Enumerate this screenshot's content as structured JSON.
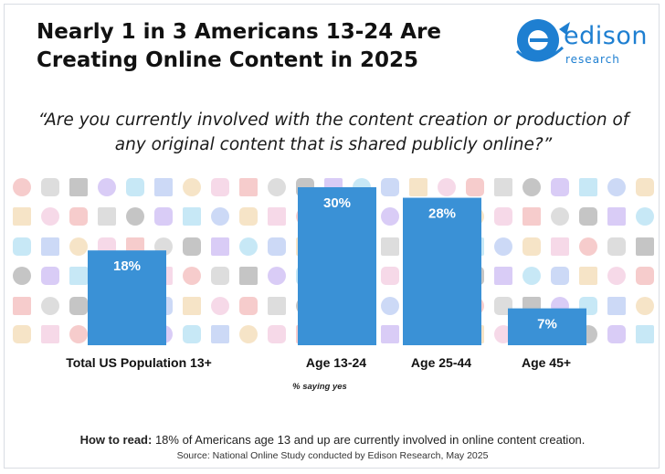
{
  "title": "Nearly 1 in 3 Americans 13-24 Are Creating Online Content in 2025",
  "logo": {
    "brand": "edison",
    "tagline": "research"
  },
  "question": "“Are you currently involved with the content creation or production of any original content that is shared publicly online?”",
  "chart_data": {
    "type": "bar",
    "categories": [
      "Total US Population 13+",
      "Age 13-24",
      "Age 25-44",
      "Age 45+"
    ],
    "values": [
      18,
      30,
      28,
      7
    ],
    "value_labels": [
      "18%",
      "30%",
      "28%",
      "7%"
    ],
    "ylim": [
      0,
      30
    ],
    "note": "% saying yes",
    "bar_color": "#3a91d6",
    "grid": false
  },
  "how_to_read": {
    "label": "How to read:",
    "text": " 18% of Americans age 13 and up are currently involved in online content creation."
  },
  "source": "Source: National Online Study conducted by Edison Research, May 2025"
}
